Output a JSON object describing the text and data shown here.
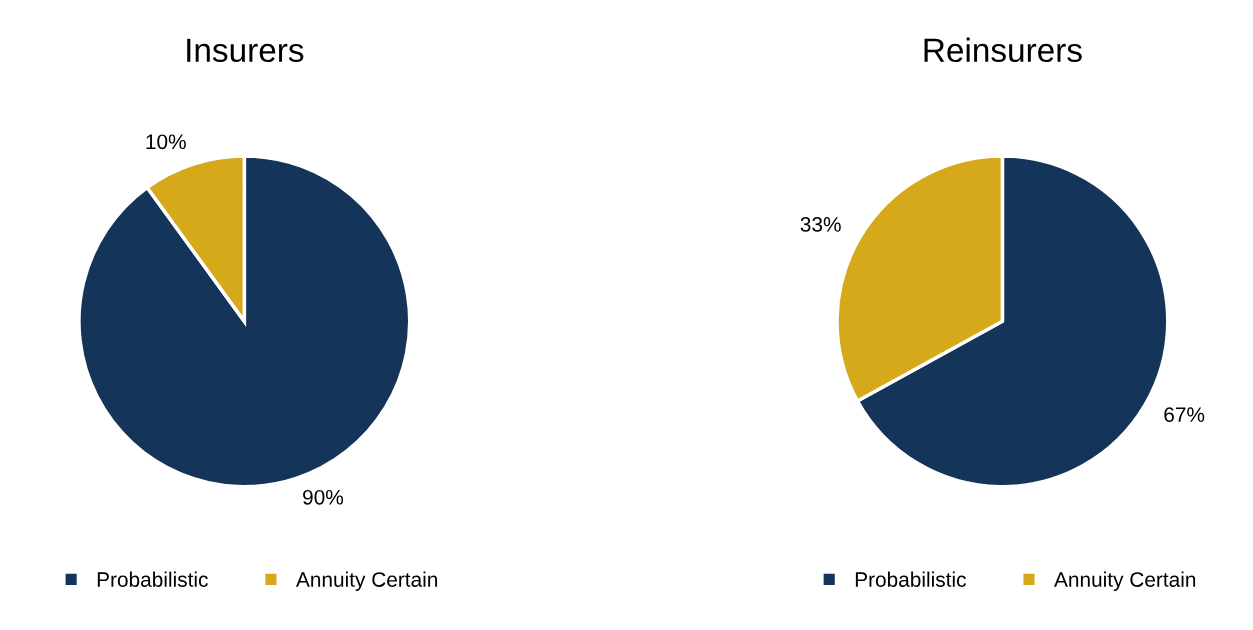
{
  "chart_data": [
    {
      "type": "pie",
      "title": "Insurers",
      "categories": [
        "Probabilistic",
        "Annuity Certain"
      ],
      "values": [
        90,
        10
      ],
      "value_labels": [
        "90%",
        "10%"
      ],
      "colors": [
        "#14345a",
        "#d6a91a"
      ],
      "legend": "bottom"
    },
    {
      "type": "pie",
      "title": "Reinsurers",
      "categories": [
        "Probabilistic",
        "Annuity Certain"
      ],
      "values": [
        67,
        33
      ],
      "value_labels": [
        "67%",
        "33%"
      ],
      "colors": [
        "#14345a",
        "#d6a91a"
      ],
      "legend": "bottom"
    }
  ]
}
